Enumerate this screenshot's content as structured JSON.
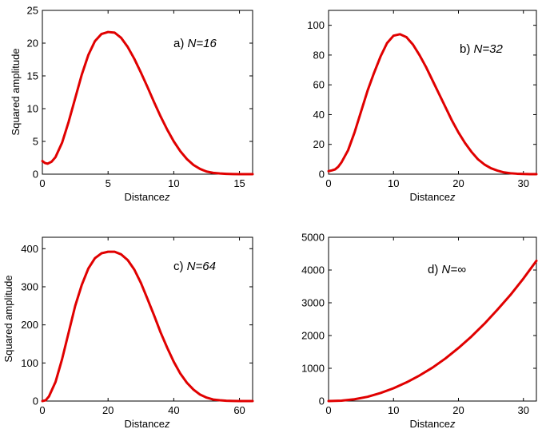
{
  "figure": {
    "curve_color": "#e00000"
  },
  "chart_data": [
    {
      "type": "line",
      "panel": "a",
      "label_prefix": "a) ",
      "label_italic": "N=16",
      "xlabel": "Distance",
      "xlabel_var": "z",
      "ylabel": "Squared amplitude",
      "xlim": [
        0,
        16
      ],
      "ylim": [
        0,
        25
      ],
      "xticks": [
        0,
        5,
        10,
        15
      ],
      "yticks": [
        0,
        5,
        10,
        15,
        20,
        25
      ],
      "series": [
        {
          "name": "N=16",
          "x": [
            0,
            0.2,
            0.4,
            0.7,
            1,
            1.5,
            2,
            2.5,
            3,
            3.5,
            4,
            4.5,
            5,
            5.5,
            6,
            6.5,
            7,
            7.5,
            8,
            8.5,
            9,
            9.5,
            10,
            10.5,
            11,
            11.5,
            12,
            12.5,
            13,
            13.5,
            14,
            14.5,
            15,
            15.5,
            16
          ],
          "y": [
            2.0,
            1.7,
            1.6,
            1.9,
            2.6,
            4.8,
            8.0,
            11.6,
            15.2,
            18.2,
            20.3,
            21.4,
            21.7,
            21.6,
            20.8,
            19.4,
            17.6,
            15.5,
            13.3,
            11.0,
            8.8,
            6.8,
            5.0,
            3.5,
            2.3,
            1.4,
            0.8,
            0.4,
            0.2,
            0.1,
            0.05,
            0.02,
            0.0,
            0.0,
            0.0
          ]
        }
      ]
    },
    {
      "type": "line",
      "panel": "b",
      "label_prefix": "b) ",
      "label_italic": "N=32",
      "xlabel": "Distance",
      "xlabel_var": "z",
      "ylabel": "",
      "xlim": [
        0,
        32
      ],
      "ylim": [
        0,
        110
      ],
      "xticks": [
        0,
        10,
        20,
        30
      ],
      "yticks": [
        0,
        20,
        40,
        60,
        80,
        100
      ],
      "series": [
        {
          "name": "N=32",
          "x": [
            0,
            0.5,
            1,
            1.5,
            2,
            3,
            4,
            5,
            6,
            7,
            8,
            9,
            10,
            11,
            12,
            13,
            14,
            15,
            16,
            17,
            18,
            19,
            20,
            21,
            22,
            23,
            24,
            25,
            26,
            27,
            28,
            29,
            30,
            31,
            32
          ],
          "y": [
            2.0,
            2.5,
            3.2,
            5.0,
            8.0,
            16.0,
            28.0,
            42.0,
            56.0,
            68.0,
            79.0,
            88.0,
            93.0,
            94.0,
            92.0,
            87.0,
            80.0,
            72.0,
            63.0,
            54.0,
            45.0,
            36.0,
            28.0,
            21.0,
            15.0,
            10.0,
            6.5,
            4.0,
            2.4,
            1.2,
            0.6,
            0.3,
            0.1,
            0.0,
            0.0
          ]
        }
      ]
    },
    {
      "type": "line",
      "panel": "c",
      "label_prefix": "c) ",
      "label_italic": "N=64",
      "xlabel": "Distance",
      "xlabel_var": "z",
      "ylabel": "Squared amplitude",
      "xlim": [
        0,
        64
      ],
      "ylim": [
        0,
        430
      ],
      "xticks": [
        0,
        20,
        40,
        60
      ],
      "yticks": [
        0,
        100,
        200,
        300,
        400
      ],
      "series": [
        {
          "name": "N=64",
          "x": [
            0,
            1,
            2,
            4,
            6,
            8,
            10,
            12,
            14,
            16,
            18,
            20,
            22,
            24,
            26,
            28,
            30,
            32,
            34,
            36,
            38,
            40,
            42,
            44,
            46,
            48,
            50,
            52,
            54,
            56,
            58,
            60,
            62,
            64
          ],
          "y": [
            0,
            2,
            12,
            50,
            110,
            180,
            250,
            305,
            348,
            375,
            388,
            392,
            392,
            385,
            370,
            345,
            310,
            268,
            225,
            180,
            140,
            103,
            72,
            48,
            30,
            17,
            9,
            4,
            2,
            0.8,
            0.3,
            0.1,
            0,
            0
          ]
        }
      ]
    },
    {
      "type": "line",
      "panel": "d",
      "label_prefix": "d) ",
      "label_italic": "N=∞",
      "xlabel": "Distance",
      "xlabel_var": "z",
      "ylabel": "",
      "xlim": [
        0,
        32
      ],
      "ylim": [
        0,
        5000
      ],
      "xticks": [
        0,
        10,
        20,
        30
      ],
      "yticks": [
        0,
        1000,
        2000,
        3000,
        4000,
        5000
      ],
      "series": [
        {
          "name": "N=∞",
          "x": [
            0,
            2,
            4,
            6,
            8,
            10,
            12,
            14,
            16,
            18,
            20,
            22,
            24,
            26,
            28,
            30,
            32
          ],
          "y": [
            0,
            12,
            55,
            130,
            245,
            390,
            570,
            780,
            1020,
            1300,
            1620,
            1970,
            2360,
            2790,
            3240,
            3740,
            4280
          ]
        }
      ]
    }
  ]
}
